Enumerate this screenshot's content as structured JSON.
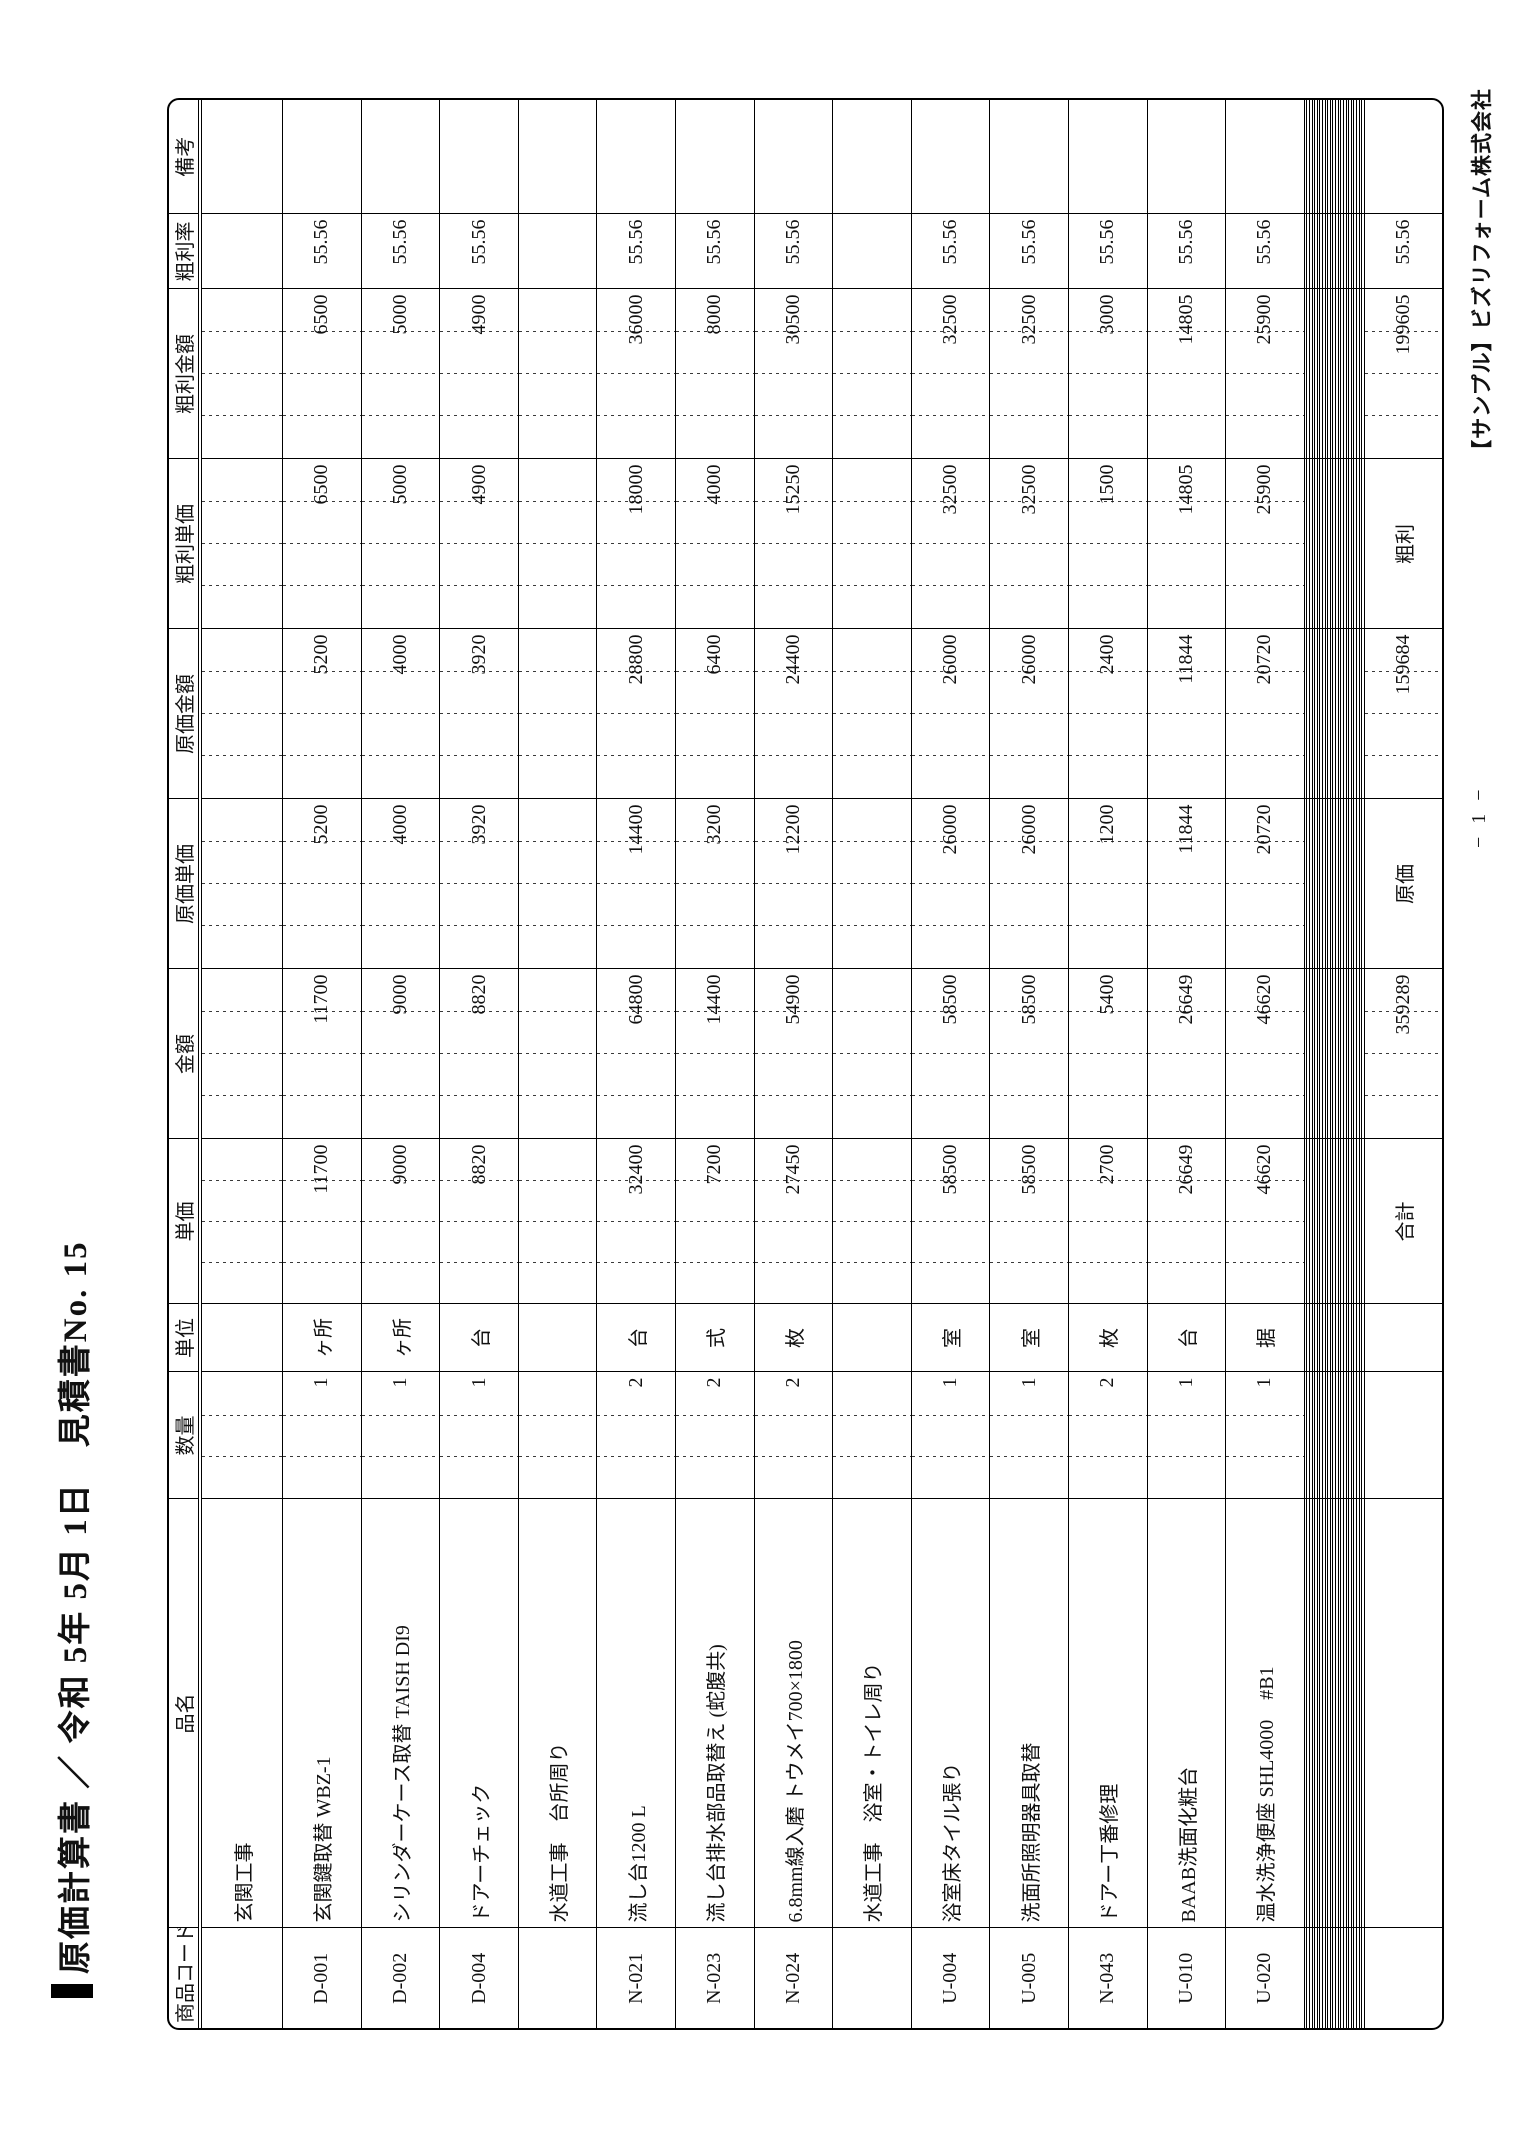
{
  "page": {
    "title": "原価計算書 ／ 令和 5年 5月 1日　見積書No. 15",
    "page_number": "− 1 −",
    "company": "【サンプル】ビズリフォーム株式会社"
  },
  "table": {
    "columns": [
      "商品コード",
      "品名",
      "数量",
      "単位",
      "単価",
      "金額",
      "原価単価",
      "原価金額",
      "粗利単価",
      "粗利金額",
      "粗利率",
      "備考"
    ],
    "rows": [
      {
        "type": "category",
        "code": "",
        "name": "玄関工事",
        "qty": "",
        "unit": "",
        "price": "",
        "amount": "",
        "cost_unit": "",
        "cost_amount": "",
        "profit_unit": "",
        "profit_amount": "",
        "rate": "",
        "note": ""
      },
      {
        "type": "item",
        "code": "D-001",
        "name": "玄関鍵取替 WBZ-1",
        "qty": "1",
        "unit": "ヶ所",
        "price": "11700",
        "amount": "11700",
        "cost_unit": "5200",
        "cost_amount": "5200",
        "profit_unit": "6500",
        "profit_amount": "6500",
        "rate": "55.56",
        "note": ""
      },
      {
        "type": "item",
        "code": "D-002",
        "name": "シリンダーケース取替 TAISH DI9",
        "qty": "1",
        "unit": "ヶ所",
        "price": "9000",
        "amount": "9000",
        "cost_unit": "4000",
        "cost_amount": "4000",
        "profit_unit": "5000",
        "profit_amount": "5000",
        "rate": "55.56",
        "note": ""
      },
      {
        "type": "item",
        "code": "D-004",
        "name": "ドアーチェック",
        "qty": "1",
        "unit": "台",
        "price": "8820",
        "amount": "8820",
        "cost_unit": "3920",
        "cost_amount": "3920",
        "profit_unit": "4900",
        "profit_amount": "4900",
        "rate": "55.56",
        "note": ""
      },
      {
        "type": "category",
        "code": "",
        "name": "水道工事　台所周り",
        "qty": "",
        "unit": "",
        "price": "",
        "amount": "",
        "cost_unit": "",
        "cost_amount": "",
        "profit_unit": "",
        "profit_amount": "",
        "rate": "",
        "note": ""
      },
      {
        "type": "item",
        "code": "N-021",
        "name": "流し台1200 L",
        "qty": "2",
        "unit": "台",
        "price": "32400",
        "amount": "64800",
        "cost_unit": "14400",
        "cost_amount": "28800",
        "profit_unit": "18000",
        "profit_amount": "36000",
        "rate": "55.56",
        "note": ""
      },
      {
        "type": "item",
        "code": "N-023",
        "name": "流し台排水部品取替え (蛇腹共)",
        "qty": "2",
        "unit": "式",
        "price": "7200",
        "amount": "14400",
        "cost_unit": "3200",
        "cost_amount": "6400",
        "profit_unit": "4000",
        "profit_amount": "8000",
        "rate": "55.56",
        "note": ""
      },
      {
        "type": "item",
        "code": "N-024",
        "name": "6.8mm線入磨 トウメイ700×1800",
        "qty": "2",
        "unit": "枚",
        "price": "27450",
        "amount": "54900",
        "cost_unit": "12200",
        "cost_amount": "24400",
        "profit_unit": "15250",
        "profit_amount": "30500",
        "rate": "55.56",
        "note": ""
      },
      {
        "type": "category",
        "code": "",
        "name": "水道工事　浴室・トイレ周り",
        "qty": "",
        "unit": "",
        "price": "",
        "amount": "",
        "cost_unit": "",
        "cost_amount": "",
        "profit_unit": "",
        "profit_amount": "",
        "rate": "",
        "note": ""
      },
      {
        "type": "item",
        "code": "U-004",
        "name": "浴室床タイル張り",
        "qty": "1",
        "unit": "室",
        "price": "58500",
        "amount": "58500",
        "cost_unit": "26000",
        "cost_amount": "26000",
        "profit_unit": "32500",
        "profit_amount": "32500",
        "rate": "55.56",
        "note": ""
      },
      {
        "type": "item",
        "code": "U-005",
        "name": "洗面所照明器具取替",
        "qty": "1",
        "unit": "室",
        "price": "58500",
        "amount": "58500",
        "cost_unit": "26000",
        "cost_amount": "26000",
        "profit_unit": "32500",
        "profit_amount": "32500",
        "rate": "55.56",
        "note": ""
      },
      {
        "type": "item",
        "code": "N-043",
        "name": "ドアー丁番修理",
        "qty": "2",
        "unit": "枚",
        "price": "2700",
        "amount": "5400",
        "cost_unit": "1200",
        "cost_amount": "2400",
        "profit_unit": "1500",
        "profit_amount": "3000",
        "rate": "55.56",
        "note": ""
      },
      {
        "type": "item",
        "code": "U-010",
        "name": "BAAB洗面化粧台",
        "qty": "1",
        "unit": "台",
        "price": "26649",
        "amount": "26649",
        "cost_unit": "11844",
        "cost_amount": "11844",
        "profit_unit": "14805",
        "profit_amount": "14805",
        "rate": "55.56",
        "note": ""
      },
      {
        "type": "item",
        "code": "U-020",
        "name": "温水洗浄便座 SHL4000　#B1",
        "qty": "1",
        "unit": "据",
        "price": "46620",
        "amount": "46620",
        "cost_unit": "20720",
        "cost_amount": "20720",
        "profit_unit": "25900",
        "profit_amount": "25900",
        "rate": "55.56",
        "note": ""
      }
    ],
    "empty_row_count": 23,
    "totals": {
      "price_label": "合計",
      "amount": "359289",
      "cost_unit_label": "原価",
      "cost_amount": "159684",
      "profit_unit_label": "粗利",
      "profit_amount": "199605",
      "rate": "55.56"
    }
  }
}
